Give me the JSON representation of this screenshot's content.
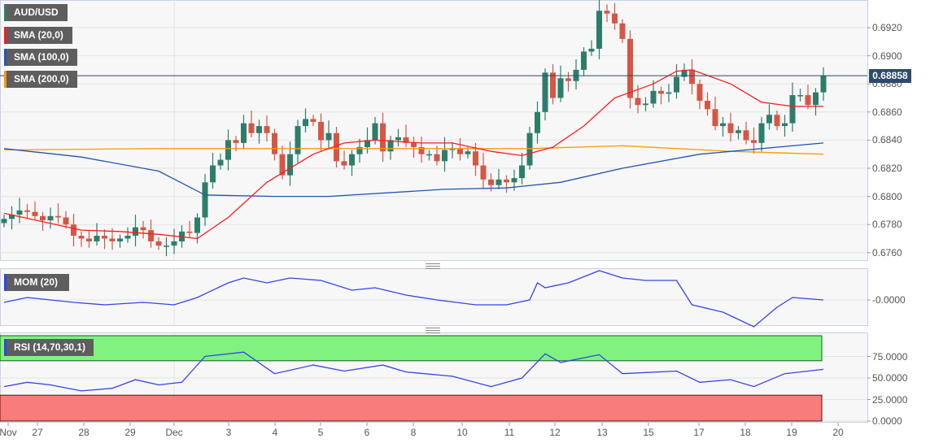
{
  "legend": {
    "symbol": "AUD/USD",
    "sma20": "SMA (20,0)",
    "sma100": "SMA (100,0)",
    "sma200": "SMA (200,0)",
    "mom": "MOM (20)",
    "rsi": "RSI (14,70,30,1)"
  },
  "colors": {
    "up": "#2e7d6b",
    "down": "#d65645",
    "sma20": "#ff1a1a",
    "sma100": "#1f56b5",
    "sma200": "#ff9900",
    "indicator": "#3344ee",
    "rsi_over": "#7ff27f",
    "rsi_under": "#f87c7c"
  },
  "price_tag": "0.68858",
  "chart_data": {
    "type": "candlestick",
    "symbol": "AUD/USD",
    "price_axis": {
      "ticks": [
        "0.6920",
        "0.6900",
        "0.6880",
        "0.6860",
        "0.6840",
        "0.6820",
        "0.6800",
        "0.6780",
        "0.6760"
      ],
      "ylim": [
        0.6752,
        0.694
      ]
    },
    "x_ticks": [
      "Nov",
      "27",
      "28",
      "29",
      "Dec",
      "3",
      "4",
      "5",
      "6",
      "8",
      "10",
      "11",
      "12",
      "13",
      "15",
      "17",
      "18",
      "19",
      "20"
    ],
    "closes": [
      0.6784,
      0.6787,
      0.679,
      0.6789,
      0.6786,
      0.6783,
      0.6786,
      0.6785,
      0.678,
      0.6772,
      0.677,
      0.6768,
      0.6772,
      0.677,
      0.6768,
      0.677,
      0.6772,
      0.6778,
      0.6776,
      0.6768,
      0.6765,
      0.6765,
      0.6768,
      0.6775,
      0.6774,
      0.6785,
      0.681,
      0.6822,
      0.6826,
      0.684,
      0.6838,
      0.6852,
      0.6845,
      0.685,
      0.6845,
      0.683,
      0.6815,
      0.683,
      0.685,
      0.6855,
      0.6853,
      0.684,
      0.6845,
      0.6825,
      0.6822,
      0.683,
      0.6835,
      0.684,
      0.6852,
      0.6832,
      0.684,
      0.6842,
      0.6838,
      0.6835,
      0.683,
      0.683,
      0.6825,
      0.6833,
      0.6834,
      0.683,
      0.6832,
      0.6822,
      0.6812,
      0.6808,
      0.6812,
      0.681,
      0.6813,
      0.6822,
      0.6845,
      0.686,
      0.6888,
      0.687,
      0.6884,
      0.6882,
      0.689,
      0.6903,
      0.6905,
      0.6932,
      0.693,
      0.6923,
      0.6912,
      0.687,
      0.6865,
      0.6866,
      0.6875,
      0.6873,
      0.6874,
      0.6885,
      0.689,
      0.688,
      0.6868,
      0.6862,
      0.685,
      0.6852,
      0.6845,
      0.6847,
      0.684,
      0.6838,
      0.6852,
      0.6858,
      0.685,
      0.6852,
      0.6872,
      0.6872,
      0.6865,
      0.6874,
      0.68858
    ],
    "sma20": [
      [
        0,
        0.6788
      ],
      [
        10,
        0.6776
      ],
      [
        15,
        0.6775
      ],
      [
        20,
        0.6773
      ],
      [
        25,
        0.677
      ],
      [
        29,
        0.6785
      ],
      [
        34,
        0.681
      ],
      [
        40,
        0.683
      ],
      [
        44,
        0.6838
      ],
      [
        48,
        0.684
      ],
      [
        54,
        0.6838
      ],
      [
        58,
        0.6838
      ],
      [
        63,
        0.6832
      ],
      [
        67,
        0.6829
      ],
      [
        71,
        0.6835
      ],
      [
        75,
        0.685
      ],
      [
        79,
        0.687
      ],
      [
        84,
        0.688
      ],
      [
        87,
        0.6889
      ],
      [
        89,
        0.689
      ],
      [
        94,
        0.688
      ],
      [
        98,
        0.6867
      ],
      [
        102,
        0.6864
      ],
      [
        106,
        0.6864
      ]
    ],
    "sma100": [
      [
        0,
        0.6834
      ],
      [
        10,
        0.6828
      ],
      [
        20,
        0.6818
      ],
      [
        26,
        0.6801
      ],
      [
        35,
        0.68
      ],
      [
        42,
        0.68
      ],
      [
        57,
        0.6805
      ],
      [
        65,
        0.6806
      ],
      [
        72,
        0.681
      ],
      [
        80,
        0.682
      ],
      [
        90,
        0.683
      ],
      [
        106,
        0.6838
      ]
    ],
    "sma200": [
      [
        0,
        0.6833
      ],
      [
        20,
        0.6834
      ],
      [
        68,
        0.6834
      ],
      [
        80,
        0.6836
      ],
      [
        94,
        0.6832
      ],
      [
        106,
        0.683
      ]
    ],
    "mom": {
      "tick": "-0.0000",
      "values": [
        [
          0,
          -0.1
        ],
        [
          3,
          0.1
        ],
        [
          6,
          0
        ],
        [
          9,
          -0.1
        ],
        [
          13,
          -0.2
        ],
        [
          18,
          -0.1
        ],
        [
          22,
          -0.2
        ],
        [
          25,
          0.1
        ],
        [
          29,
          0.7
        ],
        [
          31,
          0.9
        ],
        [
          34,
          0.7
        ],
        [
          37,
          0.9
        ],
        [
          41,
          0.8
        ],
        [
          45,
          0.4
        ],
        [
          48,
          0.5
        ],
        [
          52,
          0.2
        ],
        [
          56,
          0
        ],
        [
          61,
          -0.2
        ],
        [
          65,
          -0.2
        ],
        [
          68,
          0
        ],
        [
          69,
          0.7
        ],
        [
          70,
          0.5
        ],
        [
          73,
          0.7
        ],
        [
          77,
          1.2
        ],
        [
          80,
          0.9
        ],
        [
          83,
          0.8
        ],
        [
          87,
          0.8
        ],
        [
          89,
          -0.2
        ],
        [
          93,
          -0.5
        ],
        [
          97,
          -1.1
        ],
        [
          100,
          -0.3
        ],
        [
          102,
          0.1
        ],
        [
          106,
          0
        ]
      ]
    },
    "rsi": {
      "ticks": [
        "75.0000",
        "50.0000",
        "25.0000",
        "0.0000"
      ],
      "overbought": 70,
      "oversold": 30,
      "values": [
        [
          0,
          40
        ],
        [
          3,
          45
        ],
        [
          6,
          42
        ],
        [
          10,
          35
        ],
        [
          14,
          38
        ],
        [
          17,
          48
        ],
        [
          20,
          42
        ],
        [
          23,
          45
        ],
        [
          26,
          75
        ],
        [
          31,
          80
        ],
        [
          35,
          55
        ],
        [
          40,
          65
        ],
        [
          44,
          58
        ],
        [
          49,
          65
        ],
        [
          52,
          57
        ],
        [
          58,
          52
        ],
        [
          63,
          40
        ],
        [
          67,
          50
        ],
        [
          70,
          78
        ],
        [
          72,
          68
        ],
        [
          77,
          77
        ],
        [
          80,
          55
        ],
        [
          87,
          58
        ],
        [
          90,
          45
        ],
        [
          94,
          48
        ],
        [
          97,
          40
        ],
        [
          101,
          55
        ],
        [
          106,
          60
        ]
      ]
    }
  }
}
